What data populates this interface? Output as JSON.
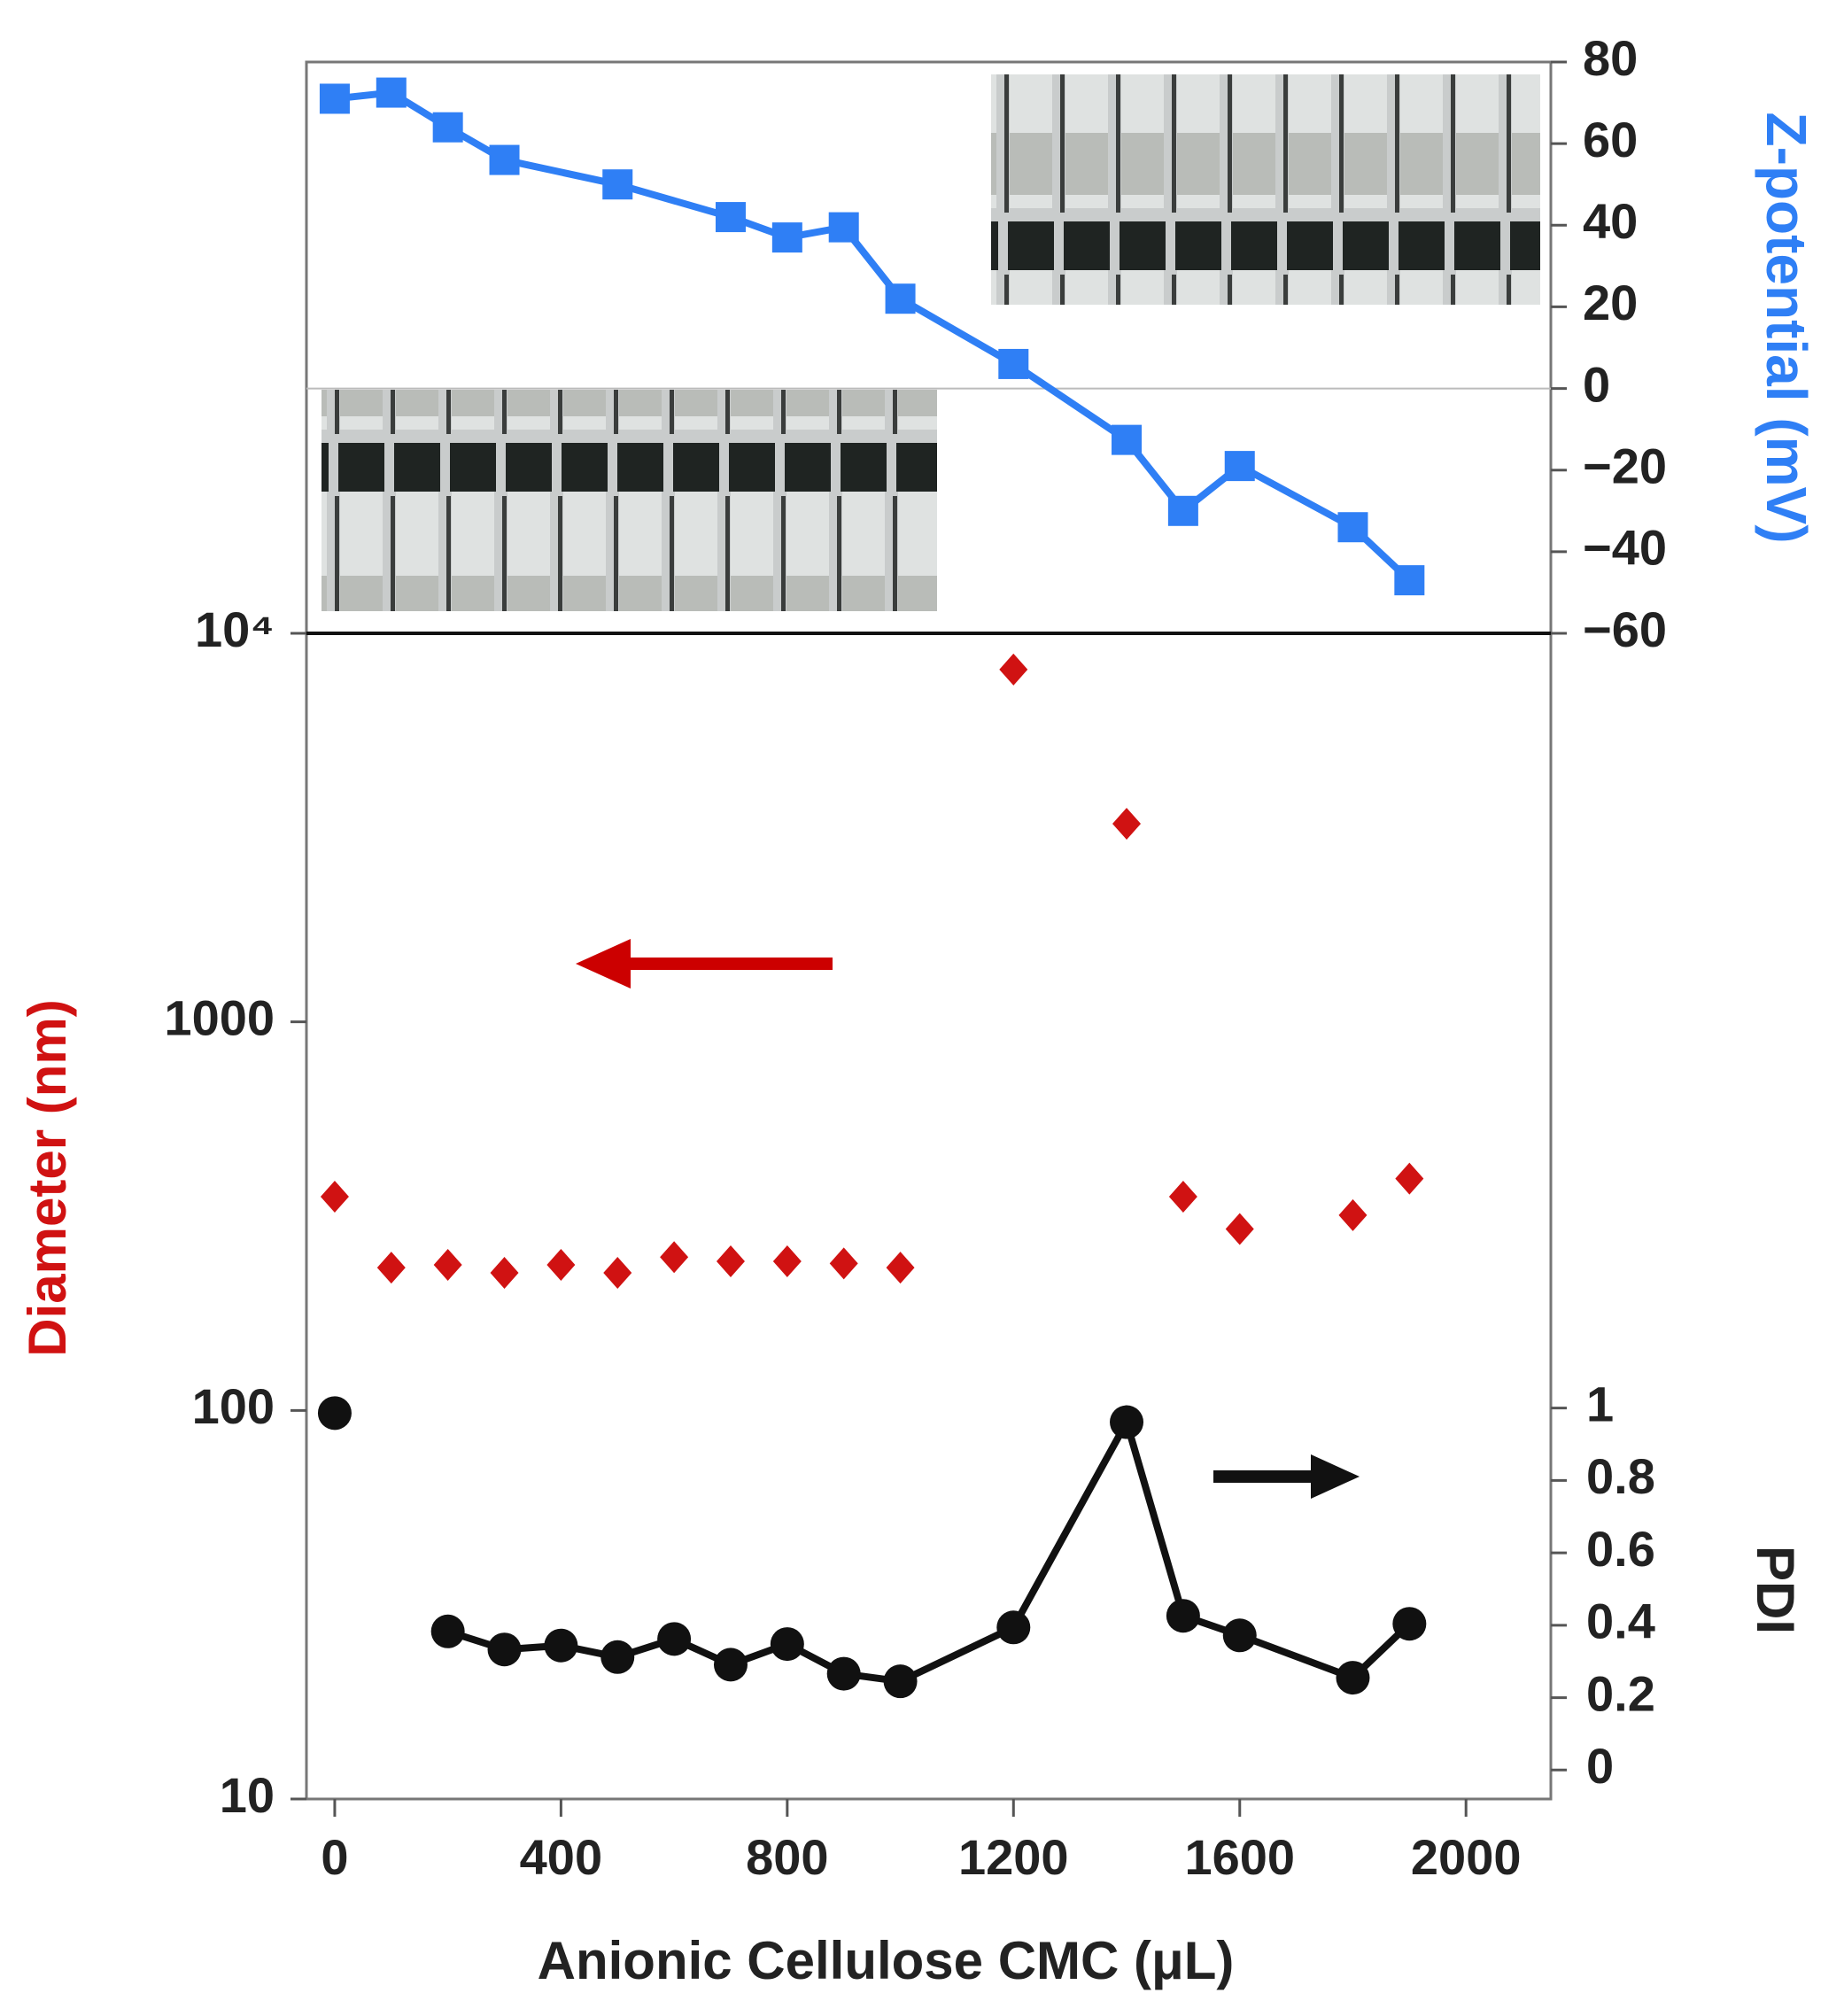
{
  "chart_data": [
    {
      "type": "line",
      "x": [
        0,
        100,
        200,
        300,
        500,
        700,
        800,
        900,
        1000,
        1200,
        1400,
        1500,
        1600,
        1800,
        1900
      ],
      "xlim": [
        -50,
        2150
      ],
      "ylim": [
        -60,
        80
      ],
      "yticks": [
        80,
        60,
        40,
        20,
        0,
        {
          "value": -20,
          "label": "−20"
        },
        {
          "value": -40,
          "label": "−40"
        },
        {
          "value": -60,
          "label": "−60"
        }
      ],
      "yaxis_position": "right",
      "ylabel": "Z-potential (mV)",
      "zero_line": true,
      "series": [
        {
          "name": "Z-potential",
          "color": "#2f7ff5",
          "marker": "square",
          "values": [
            71,
            72.5,
            64,
            56,
            50,
            42,
            37,
            39.5,
            22,
            6,
            -12.6,
            -30,
            -19,
            -34,
            -47
          ]
        }
      ]
    },
    {
      "type": "line",
      "x": [
        0,
        100,
        200,
        300,
        400,
        500,
        600,
        700,
        800,
        900,
        1000,
        1200,
        1400,
        1500,
        1600,
        1800,
        1900
      ],
      "xlim": [
        -50,
        2150
      ],
      "xticks": [
        0,
        400,
        800,
        1200,
        1600,
        2000
      ],
      "xlabel": "Anionic Cellulose CMC (μL)",
      "ylim": [
        10,
        10000
      ],
      "ylog": true,
      "yticks": [
        10,
        100,
        1000,
        {
          "value": 10000,
          "label": "10⁴"
        }
      ],
      "ylabel": "Diameter (nm)",
      "y2lim": [
        -0.08,
        3.14
      ],
      "y2ticks": [
        0,
        0.2,
        0.4,
        0.6,
        0.8,
        1
      ],
      "y2label": "PDI",
      "series": [
        {
          "name": "Diameter",
          "color": "#d01212",
          "marker": "diamond",
          "line": false,
          "values": [
            355,
            233,
            237,
            226,
            237,
            226,
            248,
            242,
            242,
            239,
            233,
            8070,
            3236,
            355,
            293,
            318,
            395
          ]
        },
        {
          "name": "PDI",
          "color": "#111111",
          "marker": "circle",
          "axis": "y2",
          "values": [
            0.986,
            null,
            0.383,
            0.333,
            0.344,
            0.312,
            0.362,
            0.291,
            0.348,
            0.266,
            0.245,
            0.394,
            0.961,
            0.426,
            0.372,
            0.255,
            0.404
          ]
        }
      ]
    }
  ]
}
